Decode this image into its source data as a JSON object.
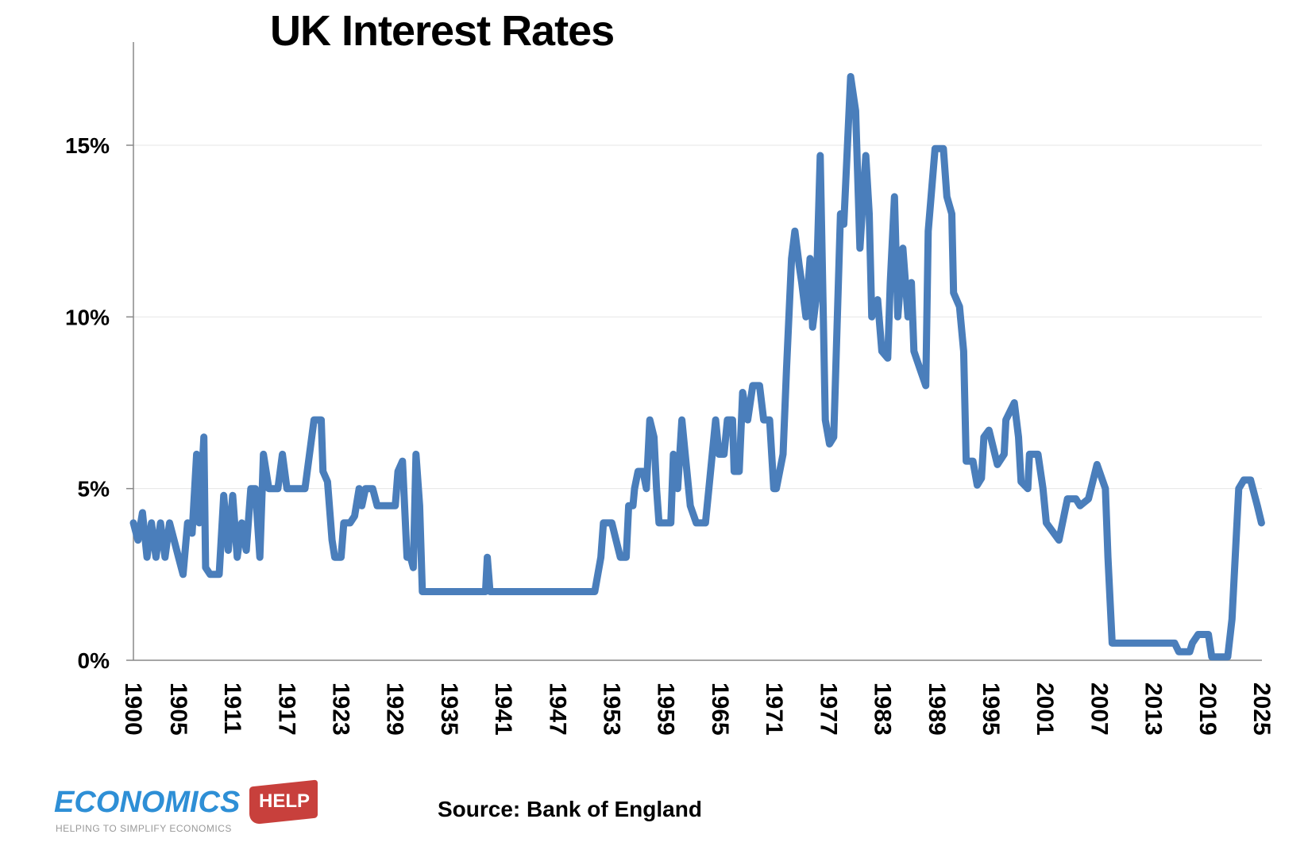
{
  "chart_data": {
    "type": "line",
    "title": "UK Interest Rates",
    "xlabel": "",
    "ylabel": "",
    "xlim": [
      1900,
      2025
    ],
    "ylim": [
      0,
      17.5
    ],
    "x_ticks": [
      "1900",
      "1905",
      "1911",
      "1917",
      "1923",
      "1929",
      "1935",
      "1941",
      "1947",
      "1953",
      "1959",
      "1965",
      "1971",
      "1977",
      "1983",
      "1989",
      "1995",
      "2001",
      "2007",
      "2013",
      "2019",
      "2025"
    ],
    "y_ticks": [
      {
        "value": 0,
        "label": "0%"
      },
      {
        "value": 5,
        "label": "5%"
      },
      {
        "value": 10,
        "label": "10%"
      },
      {
        "value": 15,
        "label": "15%"
      }
    ],
    "grid": "horizontal",
    "legend": "none",
    "series_color": "#4a7ebb",
    "series": [
      {
        "points": [
          [
            1900,
            4
          ],
          [
            1900.5,
            3.5
          ],
          [
            1901,
            4.3
          ],
          [
            1901.5,
            3
          ],
          [
            1902,
            4
          ],
          [
            1902.5,
            3
          ],
          [
            1903,
            4
          ],
          [
            1903.5,
            3
          ],
          [
            1904,
            4
          ],
          [
            1904.5,
            3.5
          ],
          [
            1905,
            3
          ],
          [
            1905.5,
            2.5
          ],
          [
            1906,
            4
          ],
          [
            1906.5,
            3.7
          ],
          [
            1907,
            6
          ],
          [
            1907.3,
            4
          ],
          [
            1907.8,
            6.5
          ],
          [
            1908,
            2.7
          ],
          [
            1908.5,
            2.5
          ],
          [
            1909.5,
            2.5
          ],
          [
            1910,
            4.8
          ],
          [
            1910.5,
            3.2
          ],
          [
            1911,
            4.8
          ],
          [
            1911.5,
            3
          ],
          [
            1912,
            4
          ],
          [
            1912.5,
            3.2
          ],
          [
            1913,
            5
          ],
          [
            1913.5,
            5
          ],
          [
            1914,
            3
          ],
          [
            1914.4,
            6
          ],
          [
            1915,
            5
          ],
          [
            1916,
            5
          ],
          [
            1916.5,
            6
          ],
          [
            1917,
            5
          ],
          [
            1919,
            5
          ],
          [
            1919.5,
            6
          ],
          [
            1920,
            7
          ],
          [
            1920.8,
            7
          ],
          [
            1921,
            5.5
          ],
          [
            1921.5,
            5.2
          ],
          [
            1922,
            3.5
          ],
          [
            1922.3,
            3
          ],
          [
            1923,
            3
          ],
          [
            1923.3,
            4
          ],
          [
            1924,
            4
          ],
          [
            1924.5,
            4.2
          ],
          [
            1925,
            5
          ],
          [
            1925.3,
            4.5
          ],
          [
            1925.7,
            5
          ],
          [
            1926.5,
            5
          ],
          [
            1927,
            4.5
          ],
          [
            1929,
            4.5
          ],
          [
            1929.3,
            5.5
          ],
          [
            1929.8,
            5.8
          ],
          [
            1930.3,
            3
          ],
          [
            1930.7,
            3
          ],
          [
            1931,
            2.7
          ],
          [
            1931.3,
            6
          ],
          [
            1931.7,
            4.5
          ],
          [
            1932,
            2
          ],
          [
            1939,
            2
          ],
          [
            1939.2,
            3
          ],
          [
            1939.5,
            2
          ],
          [
            1951.1,
            2
          ],
          [
            1951.78,
            3
          ],
          [
            1952.06,
            4
          ],
          [
            1952.99,
            4
          ],
          [
            1953.46,
            3.5
          ],
          [
            1953.93,
            3
          ],
          [
            1954.58,
            3
          ],
          [
            1954.86,
            4.5
          ],
          [
            1955.33,
            4.5
          ],
          [
            1955.51,
            5
          ],
          [
            1955.89,
            5.5
          ],
          [
            1956.45,
            5.5
          ],
          [
            1956.82,
            5
          ],
          [
            1957.2,
            7
          ],
          [
            1957.66,
            6.5
          ],
          [
            1957.94,
            5
          ],
          [
            1958.22,
            4
          ],
          [
            1959.53,
            4
          ],
          [
            1959.81,
            6
          ],
          [
            1960.28,
            5
          ],
          [
            1960.75,
            7
          ],
          [
            1961.12,
            6
          ],
          [
            1961.68,
            4.5
          ],
          [
            1962.34,
            4
          ],
          [
            1963.36,
            4
          ],
          [
            1963.74,
            5
          ],
          [
            1964.49,
            7
          ],
          [
            1964.86,
            6
          ],
          [
            1965.42,
            6
          ],
          [
            1965.79,
            7
          ],
          [
            1966.36,
            7
          ],
          [
            1966.54,
            5.5
          ],
          [
            1967.1,
            5.5
          ],
          [
            1967.48,
            7.8
          ],
          [
            1968.04,
            7
          ],
          [
            1968.6,
            8
          ],
          [
            1969.35,
            8
          ],
          [
            1969.81,
            7
          ],
          [
            1970.47,
            7
          ],
          [
            1970.93,
            5
          ],
          [
            1971.21,
            5
          ],
          [
            1971.96,
            6
          ],
          [
            1972.34,
            8.5
          ],
          [
            1972.9,
            11.7
          ],
          [
            1973.27,
            12.5
          ],
          [
            1973.74,
            11.5
          ],
          [
            1974.02,
            11
          ],
          [
            1974.49,
            10
          ],
          [
            1974.95,
            11.7
          ],
          [
            1975.23,
            9.7
          ],
          [
            1975.61,
            10.5
          ],
          [
            1976.07,
            14.7
          ],
          [
            1976.64,
            7
          ],
          [
            1977.1,
            6.3
          ],
          [
            1977.57,
            6.5
          ],
          [
            1978.32,
            13
          ],
          [
            1978.69,
            12.7
          ],
          [
            1979.44,
            17
          ],
          [
            1980,
            16
          ],
          [
            1980.47,
            12
          ],
          [
            1981.12,
            14.7
          ],
          [
            1981.5,
            13
          ],
          [
            1981.78,
            10
          ],
          [
            1982.43,
            10.5
          ],
          [
            1982.9,
            9
          ],
          [
            1983.55,
            8.8
          ],
          [
            1983.83,
            11
          ],
          [
            1984.3,
            13.5
          ],
          [
            1984.67,
            10
          ],
          [
            1985.23,
            12
          ],
          [
            1985.79,
            10
          ],
          [
            1986.17,
            11
          ],
          [
            1986.45,
            9
          ],
          [
            1987.1,
            8.5
          ],
          [
            1987.76,
            8
          ],
          [
            1988.04,
            12.5
          ],
          [
            1988.79,
            14.9
          ],
          [
            1989.72,
            14.9
          ],
          [
            1990.1,
            13.5
          ],
          [
            1990.65,
            13
          ],
          [
            1990.84,
            10.7
          ],
          [
            1991.5,
            10.3
          ],
          [
            1991.96,
            9
          ],
          [
            1992.24,
            5.8
          ],
          [
            1992.99,
            5.8
          ],
          [
            1993.46,
            5.1
          ],
          [
            1993.93,
            5.3
          ],
          [
            1994.2,
            6.5
          ],
          [
            1994.77,
            6.7
          ],
          [
            1995.7,
            5.7
          ],
          [
            1996.45,
            6
          ],
          [
            1996.64,
            7
          ],
          [
            1997.57,
            7.5
          ],
          [
            1998.04,
            6.5
          ],
          [
            1998.32,
            5.2
          ],
          [
            1999.07,
            5
          ],
          [
            1999.25,
            6
          ],
          [
            2000.19,
            6
          ],
          [
            2000.75,
            5
          ],
          [
            2001.12,
            4
          ],
          [
            2002.52,
            3.5
          ],
          [
            2003.46,
            4.7
          ],
          [
            2004.39,
            4.7
          ],
          [
            2004.86,
            4.5
          ],
          [
            2005.79,
            4.7
          ],
          [
            2006.73,
            5.7
          ],
          [
            2007.66,
            5
          ],
          [
            2007.94,
            3
          ],
          [
            2008.41,
            0.5
          ],
          [
            2015.33,
            0.5
          ],
          [
            2015.79,
            0.25
          ],
          [
            2017,
            0.25
          ],
          [
            2017.29,
            0.5
          ],
          [
            2017.94,
            0.75
          ],
          [
            2019.07,
            0.75
          ],
          [
            2019.44,
            0.1
          ],
          [
            2021.21,
            0.1
          ],
          [
            2021.68,
            1.2
          ],
          [
            2022.43,
            5
          ],
          [
            2022.99,
            5.25
          ],
          [
            2023.74,
            5.25
          ],
          [
            2024.49,
            4.5
          ],
          [
            2024.95,
            4
          ]
        ]
      }
    ]
  },
  "source": "Source: Bank of England",
  "logo": {
    "word": "ECONOMICS",
    "tag": "HELP",
    "tagline": "HELPING TO SIMPLIFY ECONOMICS",
    "word_color": "#2e8fd6",
    "tag_color": "#c8403c"
  }
}
